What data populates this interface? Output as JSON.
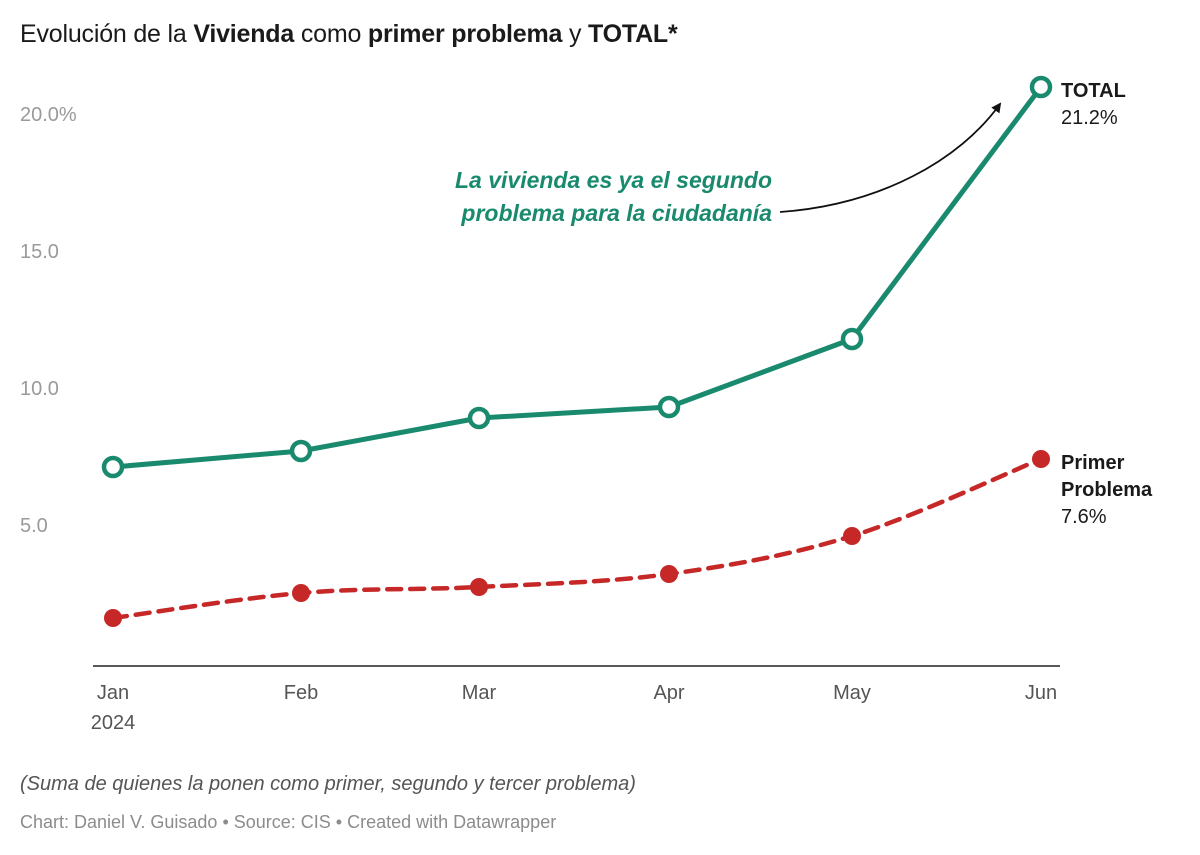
{
  "title": {
    "p1": "Evolución de la ",
    "b1": "Vivienda",
    "p2": " como ",
    "b2": "primer problema",
    "p3": " y ",
    "b3": "TOTAL*"
  },
  "chart_data": {
    "type": "line",
    "categories": [
      "Jan",
      "Feb",
      "Mar",
      "Apr",
      "May",
      "Jun"
    ],
    "x_sublabel": "2024",
    "y_ticks": [
      "20.0%",
      "15.0",
      "10.0",
      "5.0"
    ],
    "y_tick_values": [
      20,
      15,
      10,
      5
    ],
    "ylim": [
      0,
      22
    ],
    "grid": false,
    "series": [
      {
        "key": "total",
        "values": [
          7.3,
          7.9,
          9.1,
          9.5,
          12.0,
          21.2
        ],
        "end_label_lines": [
          "TOTAL"
        ],
        "end_value": "21.2%",
        "color": "#1a8a6e",
        "style": "solid",
        "marker": "hollow-circle"
      },
      {
        "key": "primer",
        "values": [
          1.8,
          2.7,
          2.9,
          3.4,
          4.8,
          7.6
        ],
        "end_label_lines": [
          "Primer",
          "Problema"
        ],
        "end_value": "7.6%",
        "color": "#c62828",
        "style": "dashed",
        "marker": "filled-circle"
      }
    ],
    "annotation": {
      "lines": [
        "La vivienda es ya el segundo",
        "problema para la ciudadanía"
      ],
      "color": "#1a8a6e"
    }
  },
  "note": "(Suma de quienes la ponen como primer, segundo y tercer problema)",
  "credits": "Chart: Daniel V. Guisado • Source: CIS • Created with Datawrapper"
}
